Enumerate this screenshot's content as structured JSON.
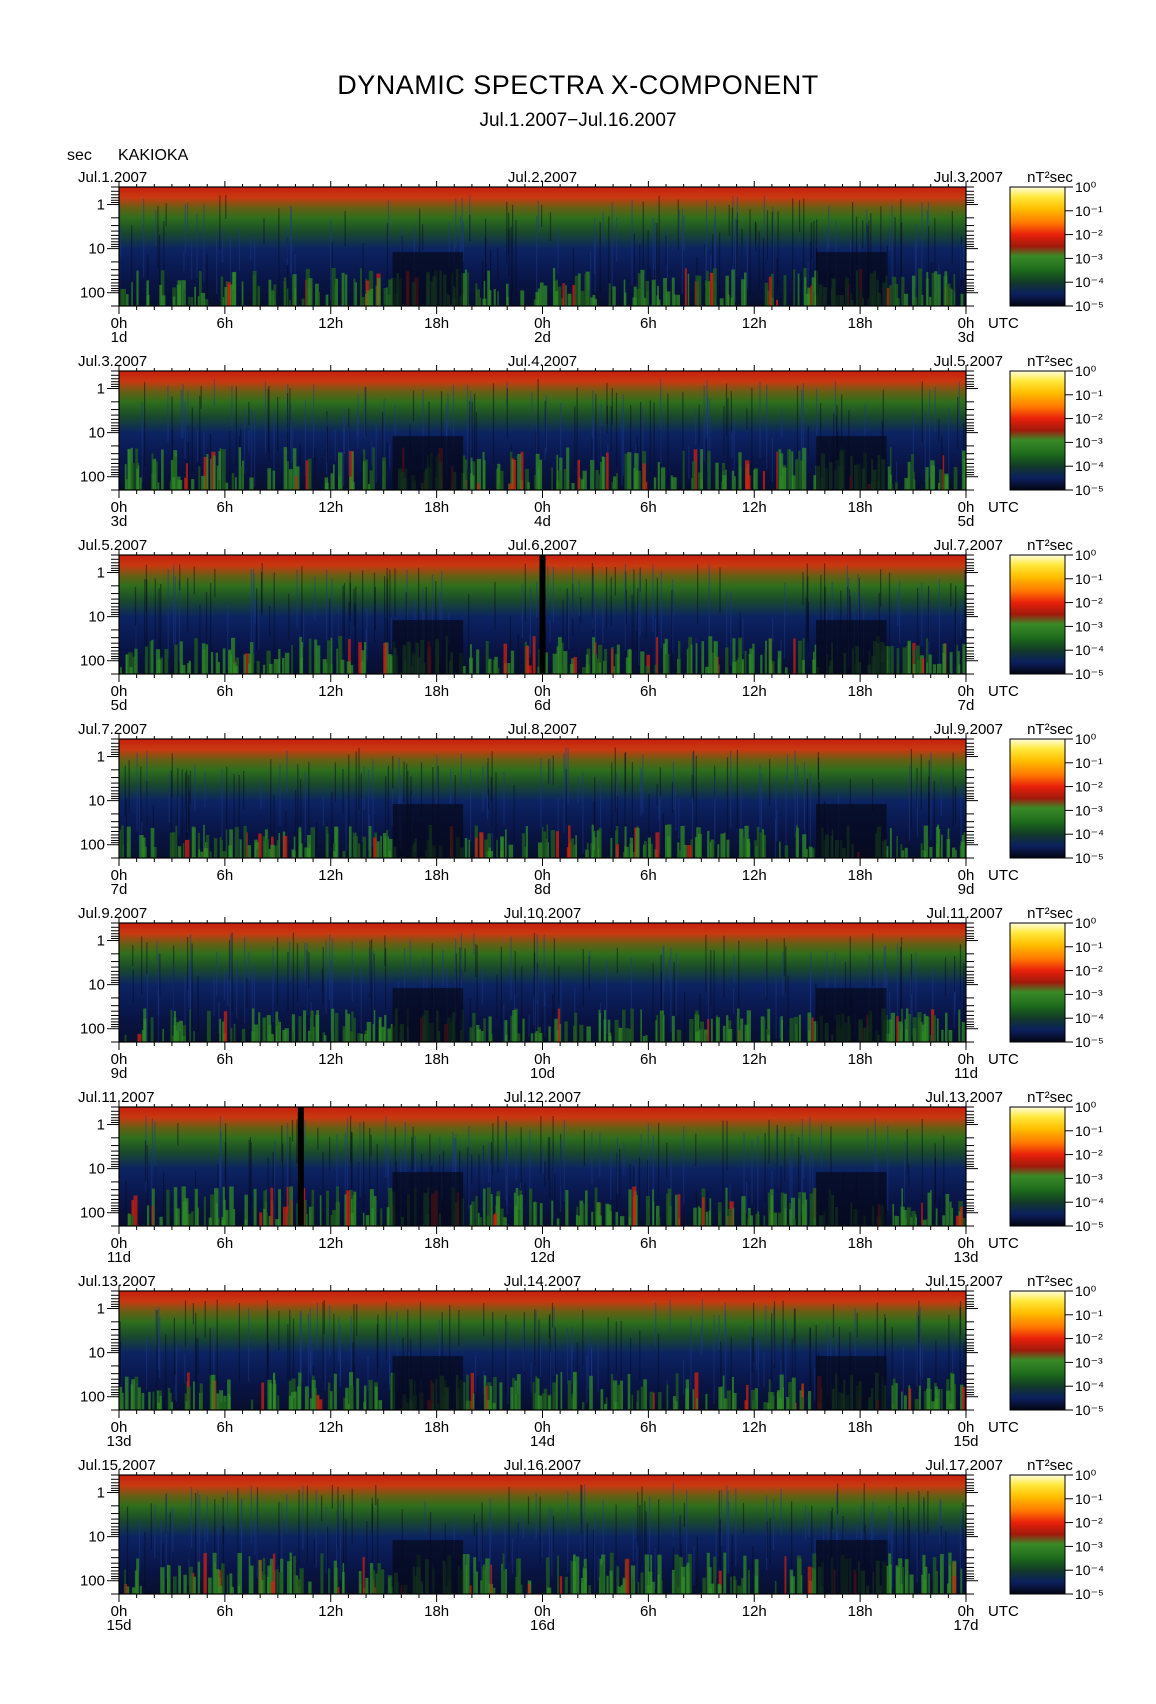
{
  "title": "DYNAMIC SPECTRA X-COMPONENT",
  "subtitle": "Jul.1.2007−Jul.16.2007",
  "units_label": "sec",
  "station": "KAKIOKA",
  "colorbar": {
    "unit_label": "nT²sec",
    "tick_labels": [
      "10⁰",
      "10⁻¹",
      "10⁻²",
      "10⁻³",
      "10⁻⁴",
      "10⁻⁵"
    ],
    "colors": [
      "#fffbb4",
      "#ffd700",
      "#ff8c00",
      "#e8200a",
      "#b01e0e",
      "#2e8b28",
      "#1b5d1a",
      "#0d2a6b",
      "#050818"
    ]
  },
  "chart_data": {
    "type": "heatmap",
    "ylabel": "sec",
    "y_ticks": [
      "1",
      "10",
      "100"
    ],
    "x_tick_labels": [
      "0h",
      "6h",
      "12h",
      "18h",
      "0h",
      "6h",
      "12h",
      "18h",
      "0h"
    ],
    "x_end_label": "UTC",
    "panels": [
      {
        "start_date": "Jul.1.2007",
        "mid_date": "Jul.2.2007",
        "end_date": "Jul.3.2007",
        "day_labels": [
          "1d",
          "2d",
          "3d"
        ],
        "gaps": [],
        "spectral_index": 0.45
      },
      {
        "start_date": "Jul.3.2007",
        "mid_date": "Jul.4.2007",
        "end_date": "Jul.5.2007",
        "day_labels": [
          "3d",
          "4d",
          "5d"
        ],
        "gaps": [],
        "spectral_index": 0.6
      },
      {
        "start_date": "Jul.5.2007",
        "mid_date": "Jul.6.2007",
        "end_date": "Jul.7.2007",
        "day_labels": [
          "5d",
          "6d",
          "7d"
        ],
        "gaps": [
          24.0
        ],
        "spectral_index": 0.45
      },
      {
        "start_date": "Jul.7.2007",
        "mid_date": "Jul.8.2007",
        "end_date": "Jul.9.2007",
        "day_labels": [
          "7d",
          "8d",
          "9d"
        ],
        "gaps": [],
        "spectral_index": 0.3
      },
      {
        "start_date": "Jul.9.2007",
        "mid_date": "Jul.10.2007",
        "end_date": "Jul.11.2007",
        "day_labels": [
          "9d",
          "10d",
          "11d"
        ],
        "gaps": [],
        "spectral_index": 0.3
      },
      {
        "start_date": "Jul.11.2007",
        "mid_date": "Jul.12.2007",
        "end_date": "Jul.13.2007",
        "day_labels": [
          "11d",
          "12d",
          "13d"
        ],
        "gaps": [
          10.3
        ],
        "spectral_index": 0.5
      },
      {
        "start_date": "Jul.13.2007",
        "mid_date": "Jul.14.2007",
        "end_date": "Jul.15.2007",
        "day_labels": [
          "13d",
          "14d",
          "15d"
        ],
        "gaps": [],
        "spectral_index": 0.45
      },
      {
        "start_date": "Jul.15.2007",
        "mid_date": "Jul.16.2007",
        "end_date": "Jul.17.2007",
        "day_labels": [
          "15d",
          "16d",
          "17d"
        ],
        "gaps": [],
        "spectral_index": 0.55
      }
    ]
  }
}
